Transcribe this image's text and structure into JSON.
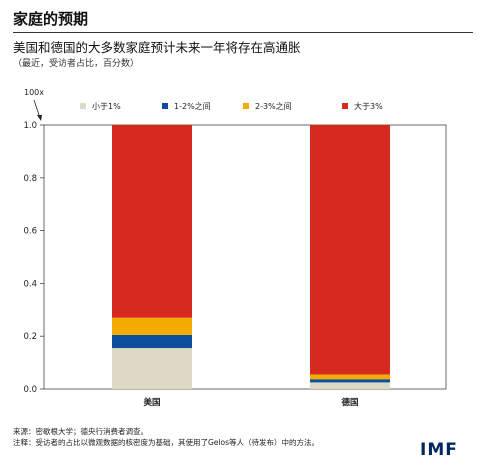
{
  "header": {
    "title": "家庭的预期",
    "subtitle": "美国和德国的大多数家庭预计未来一年将存在高通胀",
    "note": "（最近，受访者占比，百分数）"
  },
  "unit_marker": "100x",
  "footer": {
    "source": "来源：密歇根大学；德央行消费者调查。",
    "footnote": "注释：受访者的占比以微观数据的核密度为基础，其使用了Gelos等人（待发布）中的方法。",
    "logo": "IMF"
  },
  "colors": {
    "lt1": "#ddd9c4",
    "b12": "#0b4f9c",
    "b23": "#f2ad00",
    "gt3": "#d72a1e",
    "logo": "#00295f"
  },
  "chart_data": {
    "type": "bar",
    "stacked": true,
    "categories": [
      "美国",
      "德国"
    ],
    "series": [
      {
        "name": "小于1%",
        "values": [
          0.155,
          0.025
        ]
      },
      {
        "name": "1-2%之间",
        "values": [
          0.05,
          0.012
        ]
      },
      {
        "name": "2-3%之间",
        "values": [
          0.065,
          0.018
        ]
      },
      {
        "name": "大于3%",
        "values": [
          0.73,
          0.945
        ]
      }
    ],
    "ylim": [
      0,
      1.0
    ],
    "yticks": [
      "0.0",
      "0.2",
      "0.4",
      "0.6",
      "0.8",
      "1.0"
    ],
    "legend_position": "top",
    "grid": false
  }
}
